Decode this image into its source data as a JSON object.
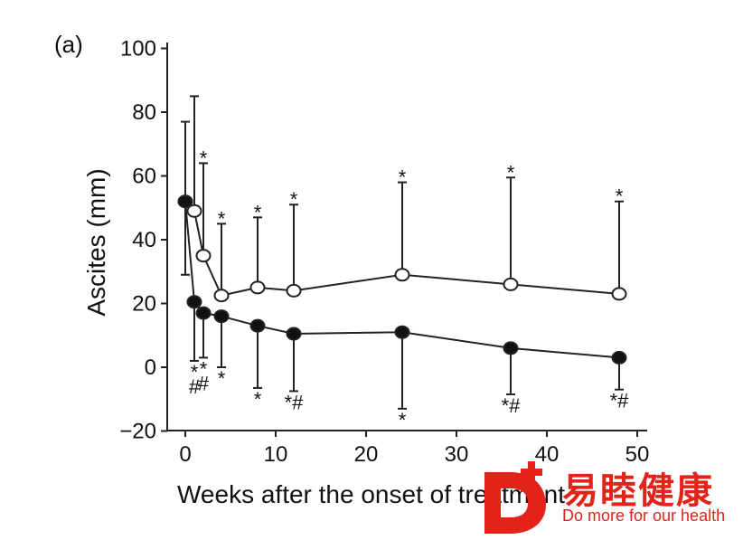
{
  "panel_label": "(a)",
  "chart_data": {
    "type": "line",
    "xlabel": "Weeks after the onset of treatment",
    "ylabel": "Ascites (mm)",
    "xlim": [
      -1,
      50
    ],
    "ylim": [
      -20,
      100
    ],
    "xticks": [
      0,
      10,
      20,
      30,
      40,
      50
    ],
    "yticks": [
      -20,
      0,
      20,
      40,
      60,
      80,
      100
    ],
    "series": [
      {
        "marker": "open-circle",
        "errors": "upper",
        "points": [
          {
            "x": 0,
            "y": 52,
            "err": 25,
            "sig": ""
          },
          {
            "x": 1,
            "y": 49,
            "err": 36,
            "sig": ""
          },
          {
            "x": 2,
            "y": 35,
            "err": 29,
            "sig": "*"
          },
          {
            "x": 4,
            "y": 22.5,
            "err": 22.5,
            "sig": "*"
          },
          {
            "x": 8,
            "y": 25,
            "err": 22,
            "sig": "*"
          },
          {
            "x": 12,
            "y": 24,
            "err": 27,
            "sig": "*"
          },
          {
            "x": 24,
            "y": 29,
            "err": 29,
            "sig": "*"
          },
          {
            "x": 36,
            "y": 26,
            "err": 33.5,
            "sig": "*"
          },
          {
            "x": 48,
            "y": 23,
            "err": 29,
            "sig": "*"
          }
        ]
      },
      {
        "marker": "filled-circle",
        "errors": "lower",
        "points": [
          {
            "x": 0,
            "y": 52,
            "err": 23,
            "sig": ""
          },
          {
            "x": 1,
            "y": 20.5,
            "err": 18.5,
            "sig": "*\n#"
          },
          {
            "x": 2,
            "y": 17,
            "err": 14,
            "sig": "*\n#"
          },
          {
            "x": 4,
            "y": 16,
            "err": 16,
            "sig": "*"
          },
          {
            "x": 8,
            "y": 13,
            "err": 19.5,
            "sig": "*"
          },
          {
            "x": 12,
            "y": 10.5,
            "err": 18,
            "sig": "*#"
          },
          {
            "x": 24,
            "y": 11,
            "err": 24,
            "sig": "*"
          },
          {
            "x": 36,
            "y": 6,
            "err": 14.5,
            "sig": "*#"
          },
          {
            "x": 48,
            "y": 3,
            "err": 10,
            "sig": "*#"
          }
        ]
      }
    ]
  },
  "watermark": {
    "name": "易睦健康",
    "tagline": "Do more for our health",
    "brand_color": "#e2231a"
  }
}
